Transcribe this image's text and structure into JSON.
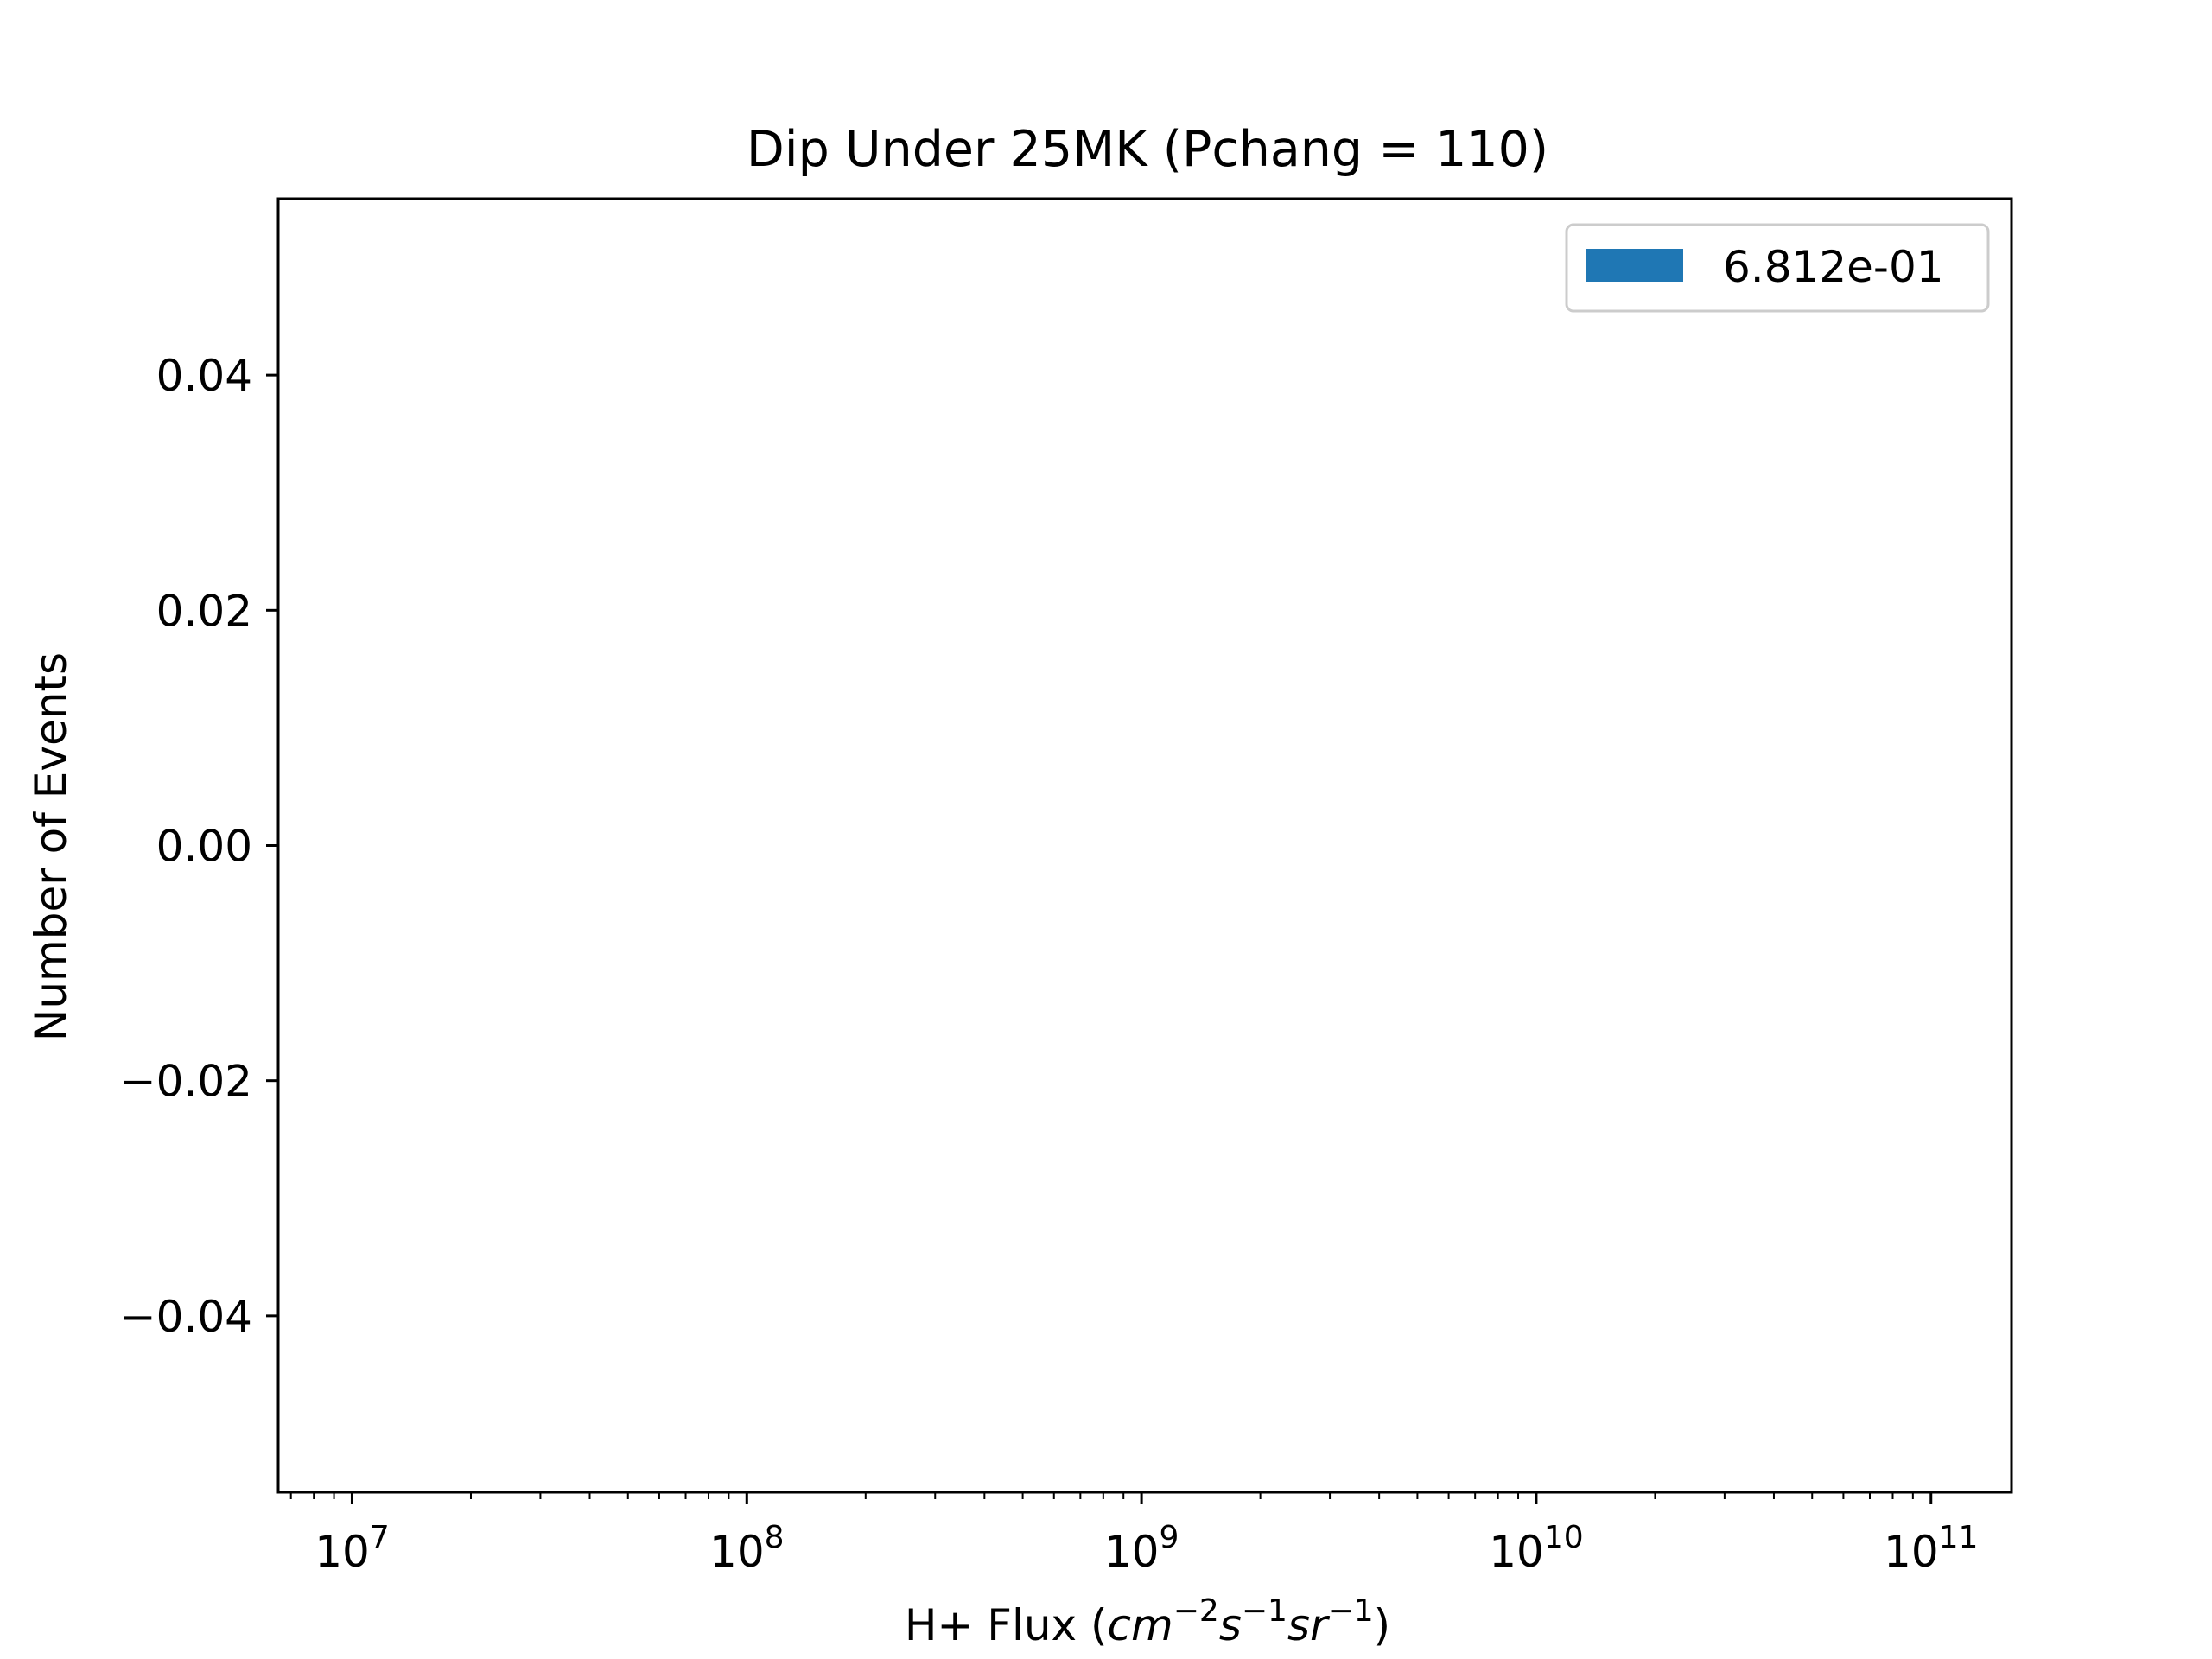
{
  "chart_data": {
    "type": "bar",
    "title": "Dip Under 25MK  (Pchang = 110)",
    "xlabel": {
      "main": "H+ Flux (",
      "unit_parts": [
        {
          "base": "cm",
          "sup": "−2"
        },
        {
          "base": "s",
          "sup": "−1"
        },
        {
          "base": "sr",
          "sup": "−1"
        }
      ],
      "close": ")"
    },
    "ylabel": "Number of Events",
    "xscale": "log",
    "xlim": [
      6500000,
      160000000000
    ],
    "ylim": [
      -0.055,
      0.055
    ],
    "xticks": [
      {
        "value": 10000000,
        "base": "10",
        "exp": "7"
      },
      {
        "value": 100000000,
        "base": "10",
        "exp": "8"
      },
      {
        "value": 1000000000,
        "base": "10",
        "exp": "9"
      },
      {
        "value": 10000000000,
        "base": "10",
        "exp": "10"
      },
      {
        "value": 100000000000,
        "base": "10",
        "exp": "11"
      }
    ],
    "yticks": [
      {
        "value": 0.04,
        "label": "0.04"
      },
      {
        "value": 0.02,
        "label": "0.02"
      },
      {
        "value": 0.0,
        "label": "0.00"
      },
      {
        "value": -0.02,
        "label": "−0.02"
      },
      {
        "value": -0.04,
        "label": "−0.04"
      }
    ],
    "series": [
      {
        "name": "6.812e-01",
        "color": "#1f77b4",
        "values": []
      }
    ],
    "legend": "top-right",
    "grid": false
  }
}
